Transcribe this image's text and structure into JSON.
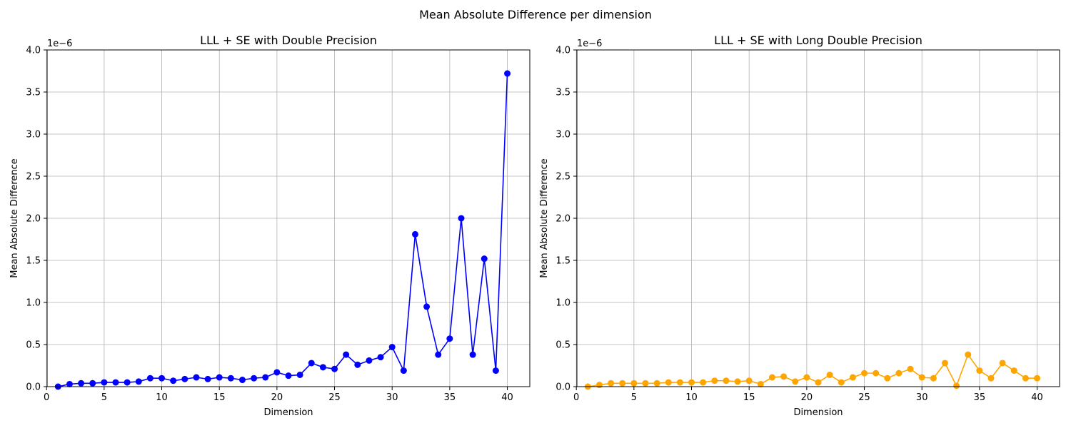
{
  "figure": {
    "suptitle": "Mean Absolute Difference per dimension"
  },
  "chart_data": [
    {
      "type": "line",
      "title": "LLL + SE with Double Precision",
      "xlabel": "Dimension",
      "ylabel": "Mean Absolute Difference",
      "offset_label": "1e−6",
      "xlim": [
        0.05,
        41.95
      ],
      "ylim": [
        0,
        4e-06
      ],
      "xticks": [
        0,
        5,
        10,
        15,
        20,
        25,
        30,
        35,
        40
      ],
      "xtick_labels": [
        "0",
        "5",
        "10",
        "15",
        "20",
        "25",
        "30",
        "35",
        "40"
      ],
      "yticks": [
        0,
        5e-07,
        1e-06,
        1.5e-06,
        2e-06,
        2.5e-06,
        3e-06,
        3.5e-06,
        4e-06
      ],
      "ytick_labels": [
        "0.0",
        "0.5",
        "1.0",
        "1.5",
        "2.0",
        "2.5",
        "3.0",
        "3.5",
        "4.0"
      ],
      "grid": true,
      "color": "#0000ff",
      "marker": "circle",
      "x": [
        1,
        2,
        3,
        4,
        5,
        6,
        7,
        8,
        9,
        10,
        11,
        12,
        13,
        14,
        15,
        16,
        17,
        18,
        19,
        20,
        21,
        22,
        23,
        24,
        25,
        26,
        27,
        28,
        29,
        30,
        31,
        32,
        33,
        34,
        35,
        36,
        37,
        38,
        39,
        40
      ],
      "y": [
        0.0,
        3e-08,
        4e-08,
        4e-08,
        5e-08,
        5e-08,
        5e-08,
        6e-08,
        1e-07,
        1e-07,
        7e-08,
        9e-08,
        1.1e-07,
        9e-08,
        1.1e-07,
        1e-07,
        8e-08,
        1e-07,
        1.1e-07,
        1.7e-07,
        1.3e-07,
        1.4e-07,
        2.8e-07,
        2.3e-07,
        2.1e-07,
        3.8e-07,
        2.6e-07,
        3.1e-07,
        3.5e-07,
        4.7e-07,
        1.9e-07,
        1.81e-06,
        9.5e-07,
        3.8e-07,
        5.7e-07,
        2e-06,
        3.8e-07,
        1.52e-06,
        1.9e-07,
        3.72e-06
      ]
    },
    {
      "type": "line",
      "title": "LLL + SE with Long Double Precision",
      "xlabel": "Dimension",
      "ylabel": "Mean Absolute Difference",
      "offset_label": "1e−6",
      "xlim": [
        0.05,
        41.95
      ],
      "ylim": [
        0,
        4e-06
      ],
      "xticks": [
        0,
        5,
        10,
        15,
        20,
        25,
        30,
        35,
        40
      ],
      "xtick_labels": [
        "0",
        "5",
        "10",
        "15",
        "20",
        "25",
        "30",
        "35",
        "40"
      ],
      "yticks": [
        0,
        5e-07,
        1e-06,
        1.5e-06,
        2e-06,
        2.5e-06,
        3e-06,
        3.5e-06,
        4e-06
      ],
      "ytick_labels": [
        "0.0",
        "0.5",
        "1.0",
        "1.5",
        "2.0",
        "2.5",
        "3.0",
        "3.5",
        "4.0"
      ],
      "grid": true,
      "color": "#ffa500",
      "marker": "circle",
      "x": [
        1,
        2,
        3,
        4,
        5,
        6,
        7,
        8,
        9,
        10,
        11,
        12,
        13,
        14,
        15,
        16,
        17,
        18,
        19,
        20,
        21,
        22,
        23,
        24,
        25,
        26,
        27,
        28,
        29,
        30,
        31,
        32,
        33,
        34,
        35,
        36,
        37,
        38,
        39,
        40
      ],
      "y": [
        0.0,
        2e-08,
        4e-08,
        4e-08,
        4e-08,
        4e-08,
        4e-08,
        5e-08,
        5e-08,
        5e-08,
        5e-08,
        7e-08,
        7e-08,
        6e-08,
        7e-08,
        3e-08,
        1.1e-07,
        1.2e-07,
        6e-08,
        1.1e-07,
        5e-08,
        1.4e-07,
        5e-08,
        1.1e-07,
        1.6e-07,
        1.6e-07,
        1e-07,
        1.6e-07,
        2.1e-07,
        1.1e-07,
        1e-07,
        2.8e-07,
        1e-08,
        3.8e-07,
        1.9e-07,
        1e-07,
        2.8e-07,
        1.9e-07,
        1e-07,
        1e-07
      ]
    }
  ]
}
